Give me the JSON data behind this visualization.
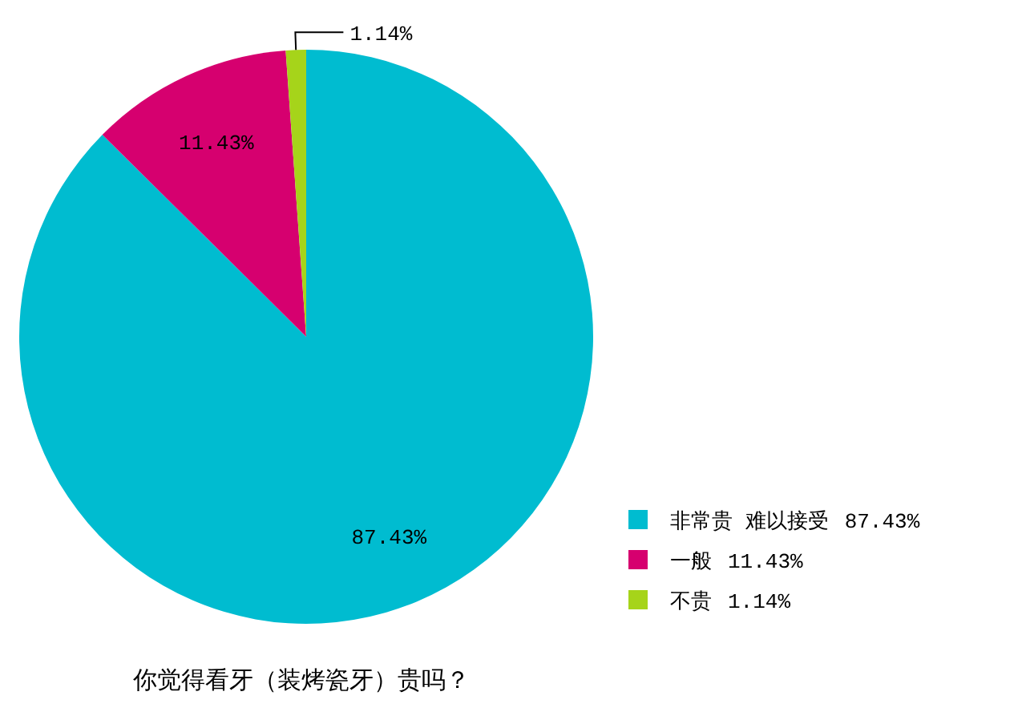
{
  "chart_data": {
    "type": "pie",
    "title": "你觉得看牙（装烤瓷牙）贵吗？",
    "categories": [
      "非常贵 难以接受",
      "一般",
      "不贵"
    ],
    "values": [
      87.43,
      11.43,
      1.14
    ],
    "value_labels": [
      "87.43%",
      "11.43%",
      "1.14%"
    ],
    "colors": [
      "#00bcd0",
      "#d6006f",
      "#a6d41a"
    ],
    "legend": "bottom right"
  }
}
